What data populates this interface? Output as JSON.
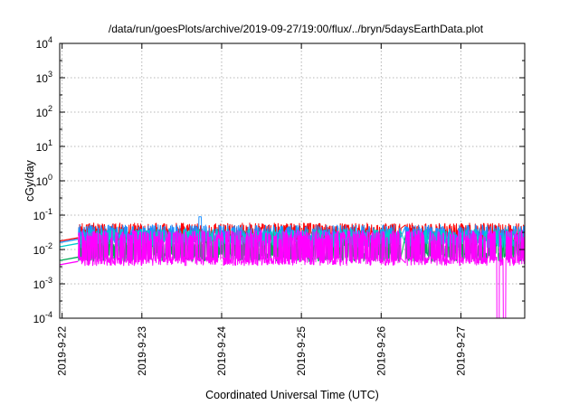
{
  "chart_data": {
    "type": "line",
    "title": "/data/run/goesPlots/archive/2019-09-27/19:00/flux/../bryn/5daysEarthData.plot",
    "xlabel": "Coordinated Universal Time (UTC)",
    "ylabel": "cGy/day",
    "yscale": "log",
    "ylim": [
      0.0001,
      10000
    ],
    "xlim": [
      -0.03,
      5.8
    ],
    "x_unit": "days since 2019-9-22 00:00 UTC",
    "x_ticks": [
      {
        "value": 0,
        "label": "2019-9-22"
      },
      {
        "value": 1,
        "label": "2019-9-23"
      },
      {
        "value": 2,
        "label": "2019-9-24"
      },
      {
        "value": 3,
        "label": "2019-9-25"
      },
      {
        "value": 4,
        "label": "2019-9-26"
      },
      {
        "value": 5,
        "label": "2019-9-27"
      }
    ],
    "y_ticks": [
      {
        "exp": -4,
        "label": "10",
        "sup": "-4"
      },
      {
        "exp": -3,
        "label": "10",
        "sup": "-3"
      },
      {
        "exp": -2,
        "label": "10",
        "sup": "-2"
      },
      {
        "exp": -1,
        "label": "10",
        "sup": "-1"
      },
      {
        "exp": 0,
        "label": "10",
        "sup": "0"
      },
      {
        "exp": 1,
        "label": "10",
        "sup": "1"
      },
      {
        "exp": 2,
        "label": "10",
        "sup": "2"
      },
      {
        "exp": 3,
        "label": "10",
        "sup": "3"
      },
      {
        "exp": 4,
        "label": "10",
        "sup": "4"
      }
    ],
    "grid": true,
    "gaps": [
      [
        0.0,
        0.2
      ],
      [
        4.25,
        4.3
      ]
    ],
    "dropouts": [
      [
        5.45,
        5.48
      ],
      [
        5.53,
        5.56
      ]
    ],
    "series": [
      {
        "name": "",
        "color": "#00aa55",
        "baseline": 0.006,
        "spike": 0.02,
        "seed": 11
      },
      {
        "name": "",
        "color": "#ff0000",
        "baseline": 0.022,
        "spike": 0.045,
        "seed": 23
      },
      {
        "name": "",
        "color": "#1e90ff",
        "baseline": 0.02,
        "spike": 0.04,
        "seed": 37
      },
      {
        "name": "",
        "color": "#00cccc",
        "baseline": 0.015,
        "spike": 0.03,
        "seed": 51
      },
      {
        "name": "",
        "color": "#ff00ff",
        "baseline": 0.0045,
        "spike": 0.028,
        "seed": 67
      }
    ]
  }
}
